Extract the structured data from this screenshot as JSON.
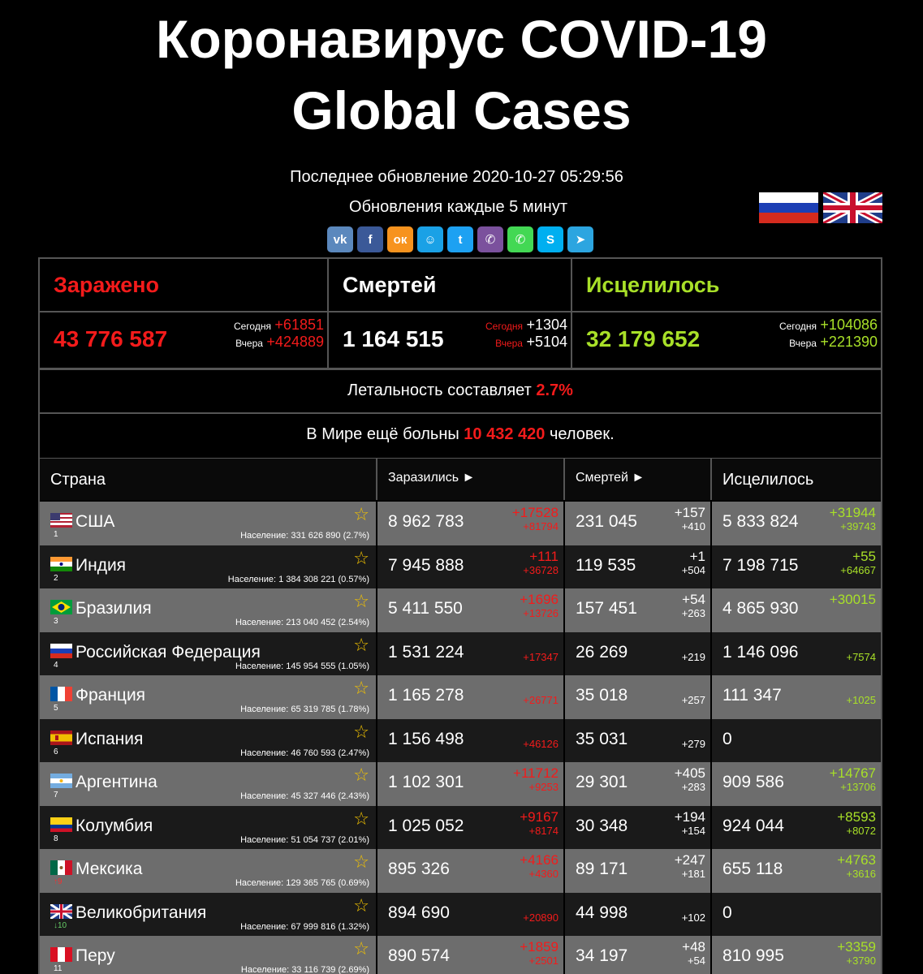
{
  "title_line1": "Коронавирус COVID-19",
  "title_line2": "Global Cases",
  "last_update": "Последнее обновление 2020-10-27 05:29:56",
  "refresh": "Обновления каждые 5 минут",
  "share_icons": [
    "vk-icon",
    "facebook-icon",
    "odnoklassniki-icon",
    "moimir-icon",
    "twitter-icon",
    "viber-icon",
    "whatsapp-icon",
    "skype-icon",
    "telegram-icon"
  ],
  "share_glyphs": [
    "vk",
    "f",
    "ок",
    "☺",
    "t",
    "✆",
    "✆",
    "S",
    "➤"
  ],
  "share_colors": [
    "#5b88bd",
    "#3b5998",
    "#f7931e",
    "#1aa1e6",
    "#1da1f2",
    "#7b519d",
    "#43d854",
    "#00aff0",
    "#2ca5e0"
  ],
  "stats": {
    "infected_label": "Заражено",
    "deaths_label": "Смертей",
    "recovered_label": "Исцелилось",
    "infected": "43 776 587",
    "deaths": "1 164 515",
    "recovered": "32 179 652",
    "today_label": "Сегодня",
    "yesterday_label": "Вчера",
    "infected_today": "+61851",
    "infected_yesterday": "+424889",
    "deaths_today": "+1304",
    "deaths_yesterday": "+5104",
    "recovered_today": "+104086",
    "recovered_yesterday": "+221390"
  },
  "lethality_text": "Летальность составляет",
  "lethality_value": "2.7%",
  "ill_prefix": "В Мире ещё больны",
  "ill_value": "10 432 420",
  "ill_suffix": "человек.",
  "table": {
    "headers": {
      "country": "Страна",
      "cases": "Заразились ►",
      "deaths": "Смертей ►",
      "recovered": "Исцелилось"
    },
    "rows": [
      {
        "flag": "us",
        "name": "США",
        "rank": "1",
        "rank_style": "",
        "pop": "Население: 331 626 890 (2.7%)",
        "cases": "8 962 783",
        "cases_d1": "+17528",
        "cases_d2": "+81794",
        "deaths": "231 045",
        "deaths_d1": "+157",
        "deaths_d2": "+410",
        "rec": "5 833 824",
        "rec_d1": "+31944",
        "rec_d2": "+39743"
      },
      {
        "flag": "in",
        "name": "Индия",
        "rank": "2",
        "rank_style": "",
        "pop": "Население: 1 384 308 221 (0.57%)",
        "cases": "7 945 888",
        "cases_d1": "+111",
        "cases_d2": "+36728",
        "deaths": "119 535",
        "deaths_d1": "+1",
        "deaths_d2": "+504",
        "rec": "7 198 715",
        "rec_d1": "+55",
        "rec_d2": "+64667"
      },
      {
        "flag": "br",
        "name": "Бразилия",
        "rank": "3",
        "rank_style": "",
        "pop": "Население: 213 040 452 (2.54%)",
        "cases": "5 411 550",
        "cases_d1": "+1696",
        "cases_d2": "+13726",
        "deaths": "157 451",
        "deaths_d1": "+54",
        "deaths_d2": "+263",
        "rec": "4 865 930",
        "rec_d1": "+30015",
        "rec_d2": ""
      },
      {
        "flag": "ru",
        "name": "Российская Федерация",
        "rank": "4",
        "rank_style": "",
        "pop": "Население: 145 954 555 (1.05%)",
        "cases": "1 531 224",
        "cases_d1": "",
        "cases_d2": "+17347",
        "deaths": "26 269",
        "deaths_d1": "",
        "deaths_d2": "+219",
        "rec": "1 146 096",
        "rec_d1": "",
        "rec_d2": "+7574"
      },
      {
        "flag": "fr",
        "name": "Франция",
        "rank": "5",
        "rank_style": "",
        "pop": "Население: 65 319 785 (1.78%)",
        "cases": "1 165 278",
        "cases_d1": "",
        "cases_d2": "+26771",
        "deaths": "35 018",
        "deaths_d1": "",
        "deaths_d2": "+257",
        "rec": "111 347",
        "rec_d1": "",
        "rec_d2": "+1025"
      },
      {
        "flag": "es",
        "name": "Испания",
        "rank": "6",
        "rank_style": "",
        "pop": "Население: 46 760 593 (2.47%)",
        "cases": "1 156 498",
        "cases_d1": "",
        "cases_d2": "+46126",
        "deaths": "35 031",
        "deaths_d1": "",
        "deaths_d2": "+279",
        "rec": "0",
        "rec_d1": "",
        "rec_d2": ""
      },
      {
        "flag": "ar",
        "name": "Аргентина",
        "rank": "7",
        "rank_style": "",
        "pop": "Население: 45 327 446 (2.43%)",
        "cases": "1 102 301",
        "cases_d1": "+11712",
        "cases_d2": "+9253",
        "deaths": "29 301",
        "deaths_d1": "+405",
        "deaths_d2": "+283",
        "rec": "909 586",
        "rec_d1": "+14767",
        "rec_d2": "+13706"
      },
      {
        "flag": "co",
        "name": "Колумбия",
        "rank": "8",
        "rank_style": "",
        "pop": "Население: 51 054 737 (2.01%)",
        "cases": "1 025 052",
        "cases_d1": "+9167",
        "cases_d2": "+8174",
        "deaths": "30 348",
        "deaths_d1": "+194",
        "deaths_d2": "+154",
        "rec": "924 044",
        "rec_d1": "+8593",
        "rec_d2": "+8072"
      },
      {
        "flag": "mx",
        "name": "Мексика",
        "rank": "↑9",
        "rank_style": "up",
        "pop": "Население: 129 365 765 (0.69%)",
        "cases": "895 326",
        "cases_d1": "+4166",
        "cases_d2": "+4360",
        "deaths": "89 171",
        "deaths_d1": "+247",
        "deaths_d2": "+181",
        "rec": "655 118",
        "rec_d1": "+4763",
        "rec_d2": "+3616"
      },
      {
        "flag": "gb",
        "name": "Великобритания",
        "rank": "↓10",
        "rank_style": "down",
        "pop": "Население: 67 999 816 (1.32%)",
        "cases": "894 690",
        "cases_d1": "",
        "cases_d2": "+20890",
        "deaths": "44 998",
        "deaths_d1": "",
        "deaths_d2": "+102",
        "rec": "0",
        "rec_d1": "",
        "rec_d2": ""
      },
      {
        "flag": "pe",
        "name": "Перу",
        "rank": "11",
        "rank_style": "",
        "pop": "Население: 33 116 739 (2.69%)",
        "cases": "890 574",
        "cases_d1": "+1859",
        "cases_d2": "+2501",
        "deaths": "34 197",
        "deaths_d1": "+48",
        "deaths_d2": "+54",
        "rec": "810 995",
        "rec_d1": "+3359",
        "rec_d2": "+3790"
      }
    ]
  }
}
